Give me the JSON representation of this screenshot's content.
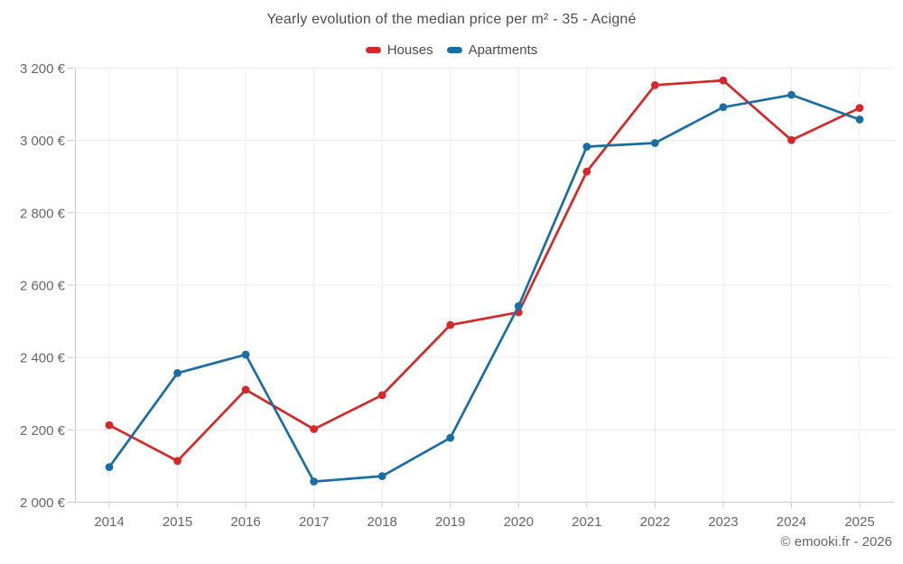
{
  "header": {
    "title": "Yearly evolution of the median price per m² - 35 - Acigné"
  },
  "legend": {
    "items": [
      {
        "label": "Houses",
        "color": "#d62828"
      },
      {
        "label": "Apartments",
        "color": "#1a6ea4"
      }
    ]
  },
  "footer": {
    "copyright": "© emooki.fr - 2026"
  },
  "chart_data": {
    "type": "line",
    "title": "Yearly evolution of the median price per m² - 35 - Acigné",
    "categories": [
      "2014",
      "2015",
      "2016",
      "2017",
      "2018",
      "2019",
      "2020",
      "2021",
      "2022",
      "2023",
      "2024",
      "2025"
    ],
    "series": [
      {
        "name": "Houses",
        "color": "#d62828",
        "values": [
          2213,
          2114,
          2311,
          2202,
          2296,
          2490,
          2525,
          2914,
          3153,
          3166,
          3001,
          3090
        ]
      },
      {
        "name": "Apartments",
        "color": "#1a6ea4",
        "values": [
          2097,
          2357,
          2408,
          2057,
          2072,
          2178,
          2542,
          2983,
          2993,
          3092,
          3126,
          3058
        ]
      }
    ],
    "xlabel": "",
    "ylabel": "",
    "ylim": [
      2000,
      3200
    ],
    "y_ticks": [
      2000,
      2200,
      2400,
      2600,
      2800,
      3000,
      3200
    ],
    "y_tick_labels": [
      "2 000 €",
      "2 200 €",
      "2 400 €",
      "2 600 €",
      "2 800 €",
      "3 000 €",
      "3 200 €"
    ],
    "currency": "€",
    "grid": true,
    "legend_position": "top",
    "marker": "circle"
  }
}
